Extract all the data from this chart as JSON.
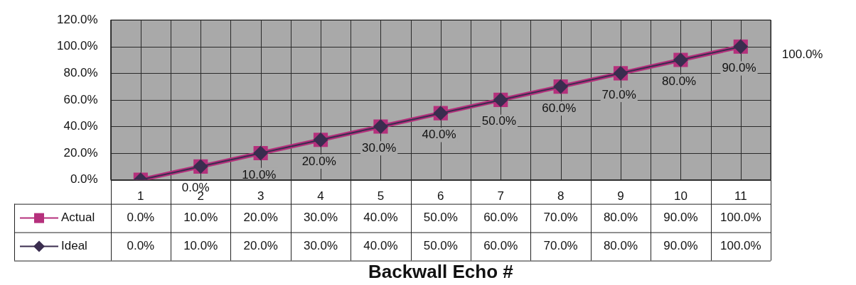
{
  "chart_data": {
    "type": "line",
    "xlabel": "Backwall Echo #",
    "categories": [
      "1",
      "2",
      "3",
      "4",
      "5",
      "6",
      "7",
      "8",
      "9",
      "10",
      "11"
    ],
    "series": [
      {
        "name": "Actual",
        "color": "#b5307c",
        "marker": "square",
        "values": [
          0,
          10,
          20,
          30,
          40,
          50,
          60,
          70,
          80,
          90,
          100
        ],
        "value_labels": [
          "0.0%",
          "10.0%",
          "20.0%",
          "30.0%",
          "40.0%",
          "50.0%",
          "60.0%",
          "70.0%",
          "80.0%",
          "90.0%",
          "100.0%"
        ]
      },
      {
        "name": "Ideal",
        "color": "#3a2d4f",
        "marker": "diamond",
        "values": [
          0,
          10,
          20,
          30,
          40,
          50,
          60,
          70,
          80,
          90,
          100
        ],
        "value_labels": [
          "0.0%",
          "10.0%",
          "20.0%",
          "30.0%",
          "40.0%",
          "50.0%",
          "60.0%",
          "70.0%",
          "80.0%",
          "90.0%",
          "100.0%"
        ]
      }
    ],
    "ylim": [
      0,
      120
    ],
    "yticks": [
      {
        "value": 0,
        "label": "0.0%"
      },
      {
        "value": 20,
        "label": "20.0%"
      },
      {
        "value": 40,
        "label": "40.0%"
      },
      {
        "value": 60,
        "label": "60.0%"
      },
      {
        "value": 80,
        "label": "80.0%"
      },
      {
        "value": 100,
        "label": "100.0%"
      },
      {
        "value": 120,
        "label": "120.0%"
      }
    ],
    "grid": true,
    "legend": "bottom left",
    "data_labels": true
  }
}
